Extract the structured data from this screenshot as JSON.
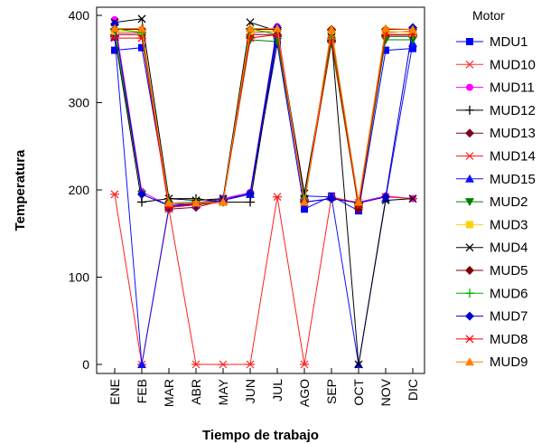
{
  "chart_data": {
    "type": "line",
    "title": "",
    "xlabel": "Tiempo de trabajo",
    "ylabel": "Temperatura",
    "categories": [
      "ENE",
      "FEB",
      "MAR",
      "ABR",
      "MAY",
      "JUN",
      "JUL",
      "AGO",
      "SEP",
      "OCT",
      "NOV",
      "DIC"
    ],
    "ylim": [
      0,
      400
    ],
    "yticks": [
      0,
      100,
      200,
      300,
      400
    ],
    "legend_title": "Motor",
    "legend_position": "right-outside",
    "grid": false,
    "series": [
      {
        "name": "MDU1",
        "color": "#0000ff",
        "marker": "square",
        "values": [
          360,
          363,
          185,
          183,
          190,
          195,
          367,
          178,
          193,
          176,
          360,
          362
        ]
      },
      {
        "name": "MUD10",
        "color": "#ff3030",
        "marker": "x",
        "values": [
          380,
          380,
          182,
          183,
          186,
          380,
          382,
          185,
          380,
          182,
          380,
          382
        ]
      },
      {
        "name": "MUD11",
        "color": "#ff00ff",
        "marker": "circle",
        "values": [
          395,
          198,
          182,
          185,
          190,
          197,
          387,
          186,
          190,
          186,
          193,
          190
        ]
      },
      {
        "name": "MUD12",
        "color": "#000000",
        "marker": "plus",
        "values": [
          376,
          186,
          190,
          190,
          186,
          186,
          376,
          188,
          370,
          186,
          376,
          376
        ]
      },
      {
        "name": "MUD13",
        "color": "#800020",
        "marker": "diamond",
        "values": [
          378,
          378,
          178,
          180,
          188,
          378,
          378,
          186,
          383,
          178,
          378,
          378
        ]
      },
      {
        "name": "MUD14",
        "color": "#ff2020",
        "marker": "asterisk",
        "values": [
          195,
          0,
          178,
          0,
          0,
          0,
          192,
          0,
          192,
          185,
          192,
          190
        ]
      },
      {
        "name": "MUD15",
        "color": "#1010ff",
        "marker": "triangle-up",
        "values": [
          375,
          0,
          180,
          183,
          188,
          195,
          380,
          193,
          192,
          0,
          190,
          368
        ]
      },
      {
        "name": "MUD2",
        "color": "#008000",
        "marker": "triangle-down",
        "values": [
          380,
          195,
          182,
          183,
          187,
          372,
          370,
          190,
          368,
          180,
          372,
          372
        ]
      },
      {
        "name": "MUD3",
        "color": "#ffd000",
        "marker": "square",
        "values": [
          382,
          382,
          185,
          185,
          186,
          382,
          382,
          186,
          378,
          184,
          382,
          380
        ]
      },
      {
        "name": "MUD4",
        "color": "#000000",
        "marker": "x",
        "values": [
          392,
          396,
          190,
          188,
          190,
          392,
          382,
          196,
          375,
          0,
          188,
          190
        ]
      },
      {
        "name": "MUD5",
        "color": "#800000",
        "marker": "diamond",
        "values": [
          384,
          384,
          180,
          183,
          187,
          384,
          384,
          186,
          384,
          180,
          384,
          384
        ]
      },
      {
        "name": "MUD6",
        "color": "#00b000",
        "marker": "plus",
        "values": [
          385,
          380,
          185,
          186,
          186,
          385,
          378,
          188,
          374,
          184,
          378,
          378
        ]
      },
      {
        "name": "MUD7",
        "color": "#0000cc",
        "marker": "diamond",
        "values": [
          390,
          195,
          182,
          183,
          188,
          196,
          386,
          186,
          190,
          185,
          192,
          386
        ]
      },
      {
        "name": "MUD8",
        "color": "#ff0000",
        "marker": "asterisk",
        "values": [
          374,
          374,
          180,
          183,
          186,
          374,
          378,
          186,
          372,
          182,
          378,
          378
        ]
      },
      {
        "name": "MUD9",
        "color": "#ff8000",
        "marker": "triangle-up",
        "values": [
          385,
          385,
          185,
          185,
          186,
          385,
          385,
          186,
          384,
          186,
          385,
          384
        ]
      }
    ]
  }
}
